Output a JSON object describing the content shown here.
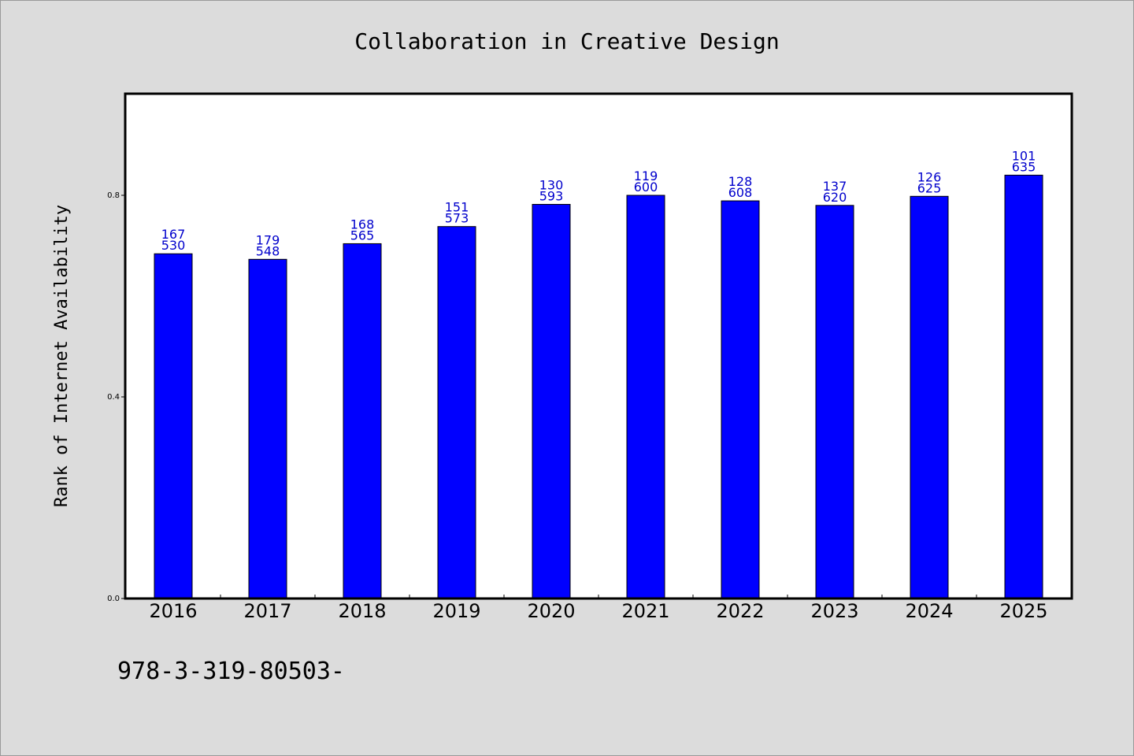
{
  "chart_data": {
    "type": "bar",
    "title": "Collaboration in Creative Design",
    "xlabel": "",
    "ylabel": "Rank of Internet Availability",
    "categories": [
      "2016",
      "2017",
      "2018",
      "2019",
      "2020",
      "2021",
      "2022",
      "2023",
      "2024",
      "2025"
    ],
    "values": [
      0.684,
      0.673,
      0.704,
      0.738,
      0.782,
      0.8,
      0.789,
      0.78,
      0.798,
      0.84
    ],
    "data_labels": [
      [
        "167",
        "530"
      ],
      [
        "179",
        "548"
      ],
      [
        "168",
        "565"
      ],
      [
        "151",
        "573"
      ],
      [
        "130",
        "593"
      ],
      [
        "119",
        "600"
      ],
      [
        "128",
        "608"
      ],
      [
        "137",
        "620"
      ],
      [
        "126",
        "625"
      ],
      [
        "101",
        "635"
      ]
    ],
    "yticks": [
      "0.0",
      "0.4",
      "0.8"
    ],
    "ylim": [
      0,
      1.0
    ],
    "grid": false,
    "bar_color": "#0000ff",
    "label_color": "#0000cc",
    "plot_background": "#ffffff",
    "figure_background": "#dcdcdc"
  },
  "footer_text": "978-3-319-80503-"
}
